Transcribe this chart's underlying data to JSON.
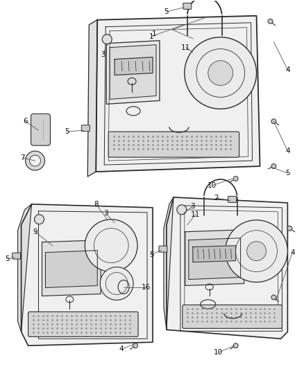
{
  "bg_color": "#ffffff",
  "line_color": "#2a2a2a",
  "callout_color": "#555555",
  "fig_width": 4.38,
  "fig_height": 5.33,
  "dpi": 100
}
